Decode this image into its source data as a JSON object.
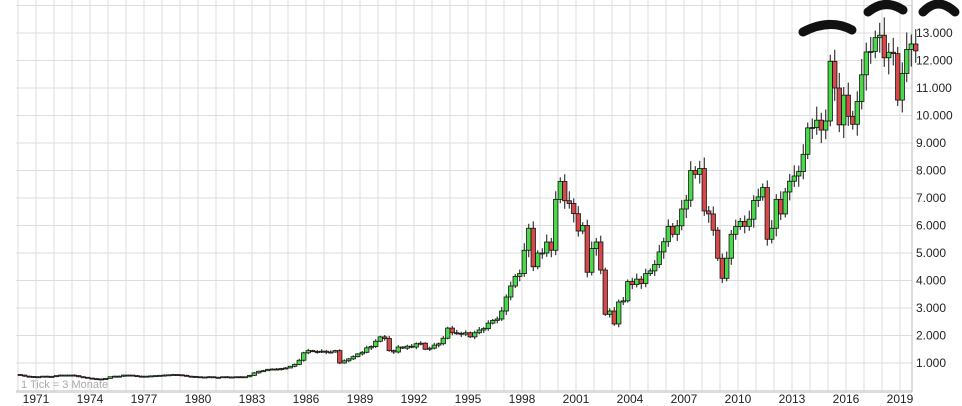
{
  "chart_data": {
    "type": "candlestick",
    "interval_note": "1 Tick = 3 Monate",
    "x_tick_labels": [
      "1971",
      "1974",
      "1977",
      "1980",
      "1983",
      "1986",
      "1989",
      "1992",
      "1995",
      "1998",
      "2001",
      "2004",
      "2007",
      "2010",
      "2013",
      "2016",
      "2019"
    ],
    "y_tick_labels": [
      "1.000",
      "2.000",
      "3.000",
      "4.000",
      "5.000",
      "6.000",
      "7.000",
      "8.000",
      "9.000",
      "10.000",
      "11.000",
      "12.000",
      "13.000"
    ],
    "ylim": [
      0,
      14000
    ],
    "xlim": [
      1970,
      2019.5
    ],
    "grid": true,
    "colors": {
      "up": "#4ad94a",
      "down": "#d84848",
      "outline": "#111111",
      "grid": "#dddddd"
    },
    "start_year": 1970,
    "quarterly_close": [
      560,
      520,
      510,
      490,
      500,
      520,
      500,
      510,
      540,
      560,
      560,
      560,
      540,
      500,
      480,
      450,
      430,
      420,
      400,
      440,
      500,
      520,
      520,
      560,
      560,
      540,
      520,
      510,
      520,
      530,
      540,
      550,
      560,
      570,
      580,
      570,
      550,
      520,
      510,
      500,
      480,
      490,
      500,
      480,
      480,
      500,
      480,
      490,
      500,
      480,
      500,
      550,
      640,
      700,
      720,
      770,
      780,
      760,
      800,
      820,
      880,
      950,
      1100,
      1370,
      1450,
      1420,
      1400,
      1430,
      1390,
      1400,
      1450,
      1000,
      1080,
      1150,
      1230,
      1330,
      1390,
      1550,
      1600,
      1790,
      1950,
      1890,
      1450,
      1400,
      1580,
      1540,
      1610,
      1580,
      1700,
      1720,
      1500,
      1540,
      1650,
      1700,
      1900,
      2270,
      2100,
      2080,
      2050,
      2100,
      1950,
      2100,
      2200,
      2250,
      2450,
      2550,
      2600,
      2890,
      3400,
      3800,
      4150,
      4250,
      5100,
      5900,
      4500,
      5000,
      5000,
      5400,
      5100,
      6950,
      7600,
      6900,
      6800,
      6430,
      5800,
      6000,
      4300,
      5160,
      5400,
      4380,
      2770,
      2890,
      2420,
      3220,
      3260,
      3960,
      3850,
      4050,
      3890,
      4250,
      4350,
      4580,
      5040,
      5410,
      5970,
      5680,
      5990,
      6600,
      6920,
      8000,
      7860,
      8070,
      6530,
      6420,
      5830,
      4810,
      4080,
      4810,
      5680,
      5960,
      6150,
      5970,
      6230,
      6910,
      7040,
      7380,
      5500,
      5900,
      6950,
      6420,
      7220,
      7610,
      7800,
      7960,
      8590,
      9550,
      9560,
      9830,
      9470,
      9800,
      11970,
      11000,
      9660,
      10740,
      9970,
      9680,
      10510,
      11480,
      12310,
      12330,
      12830,
      12920,
      12100,
      12300,
      12250,
      10560,
      11530,
      12400,
      12600,
      12350
    ]
  }
}
